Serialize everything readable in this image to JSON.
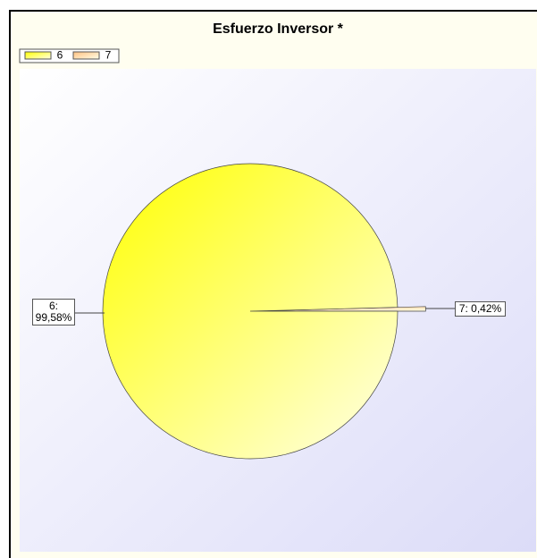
{
  "chart_data": {
    "type": "pie",
    "title": "Esfuerzo Inversor *",
    "categories": [
      "6",
      "7"
    ],
    "values": [
      99.58,
      0.42
    ],
    "value_labels": [
      "6: 99,58%",
      "7: 0,42%"
    ],
    "colors": [
      "#ffff00",
      "#ffc080"
    ],
    "legend": "top-left"
  }
}
